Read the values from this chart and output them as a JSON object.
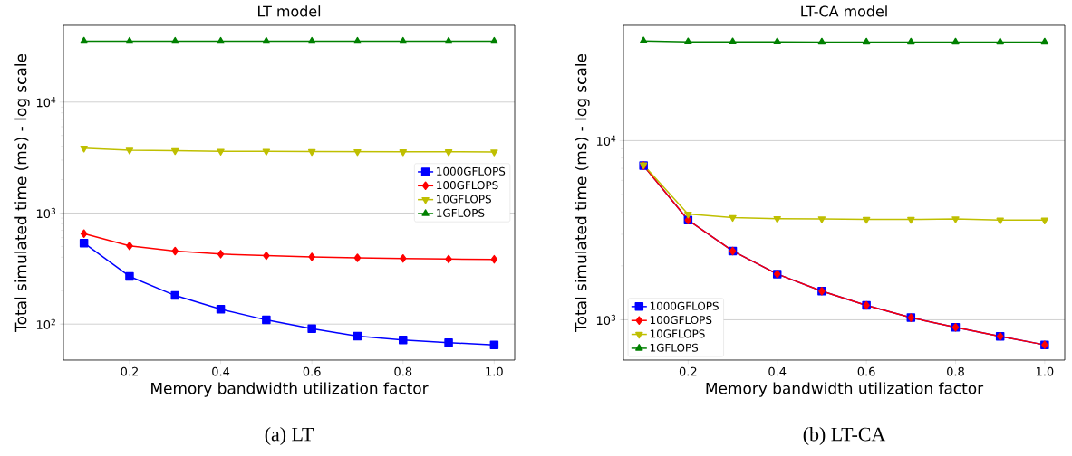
{
  "chart_data": [
    {
      "type": "line",
      "title": "LT model",
      "xlabel": "Memory bandwidth utilization factor",
      "ylabel": "Total simulated time (ms) - log scale",
      "annotations": [
        "(a) LT"
      ],
      "x": [
        0.1,
        0.2,
        0.3,
        0.4,
        0.5,
        0.6,
        0.7,
        0.8,
        0.9,
        1.0
      ],
      "series": [
        {
          "name": "1000GFLOPS",
          "color": "#0000ff",
          "marker": "square",
          "values": [
            537,
            269,
            181,
            136,
            109,
            91,
            78,
            72,
            68,
            65
          ]
        },
        {
          "name": "100GFLOPS",
          "color": "#ff0000",
          "marker": "diamond",
          "values": [
            653,
            506,
            454,
            427,
            413,
            403,
            395,
            390,
            385,
            383
          ]
        },
        {
          "name": "10GFLOPS",
          "color": "#bfbf00",
          "marker": "triangle_down",
          "values": [
            3840,
            3690,
            3650,
            3600,
            3600,
            3580,
            3570,
            3560,
            3560,
            3550
          ]
        },
        {
          "name": "1GFLOPS",
          "color": "#008000",
          "marker": "triangle",
          "values": [
            35400,
            35300,
            35300,
            35300,
            35300,
            35300,
            35300,
            35300,
            35300,
            35300
          ]
        }
      ],
      "xlim": [
        0.055,
        1.045
      ],
      "ylim": [
        47.4,
        49100
      ],
      "log": "y",
      "xticks": [
        0.2,
        0.4,
        0.6,
        0.8,
        {
          "value": 1.0,
          "label": "1.0"
        }
      ],
      "yticks": [
        {
          "value": 100,
          "label": "10$^{2}$"
        },
        {
          "value": 1000,
          "label": "10$^{3}$"
        },
        {
          "value": 10000,
          "label": "10$^{4}$"
        }
      ],
      "grid": "y",
      "legend": "right",
      "line_style": "solid"
    },
    {
      "type": "line",
      "title": "LT-CA model",
      "xlabel": "Memory bandwidth utilization factor",
      "ylabel": "Total simulated time (ms) - log scale",
      "annotations": [
        "(b) LT-CA"
      ],
      "x": [
        0.1,
        0.2,
        0.3,
        0.4,
        0.5,
        0.6,
        0.7,
        0.8,
        0.9,
        1.0
      ],
      "series": [
        {
          "name": "1000GFLOPS",
          "color": "#0000ff",
          "marker": "square",
          "values": [
            7250,
            3600,
            2420,
            1800,
            1445,
            1205,
            1028,
            908,
            808,
            725
          ]
        },
        {
          "name": "100GFLOPS",
          "color": "#ff0000",
          "marker": "diamond",
          "values": [
            7250,
            3600,
            2420,
            1800,
            1445,
            1205,
            1028,
            908,
            808,
            725
          ]
        },
        {
          "name": "10GFLOPS",
          "color": "#bfbf00",
          "marker": "triangle_down",
          "values": [
            7330,
            3890,
            3720,
            3670,
            3660,
            3630,
            3630,
            3660,
            3600,
            3600
          ]
        },
        {
          "name": "1GFLOPS",
          "color": "#008000",
          "marker": "triangle",
          "values": [
            36000,
            35600,
            35600,
            35600,
            35500,
            35500,
            35500,
            35500,
            35500,
            35500
          ]
        }
      ],
      "xlim": [
        0.055,
        1.045
      ],
      "ylim": [
        596,
        44000
      ],
      "log": "y",
      "xticks": [
        0.2,
        0.4,
        0.6,
        0.8,
        {
          "value": 1.0,
          "label": "1.0"
        }
      ],
      "yticks": [
        {
          "value": 1000,
          "label": "10$^{3}$"
        },
        {
          "value": 10000,
          "label": "10$^{4}$"
        }
      ],
      "grid": "y",
      "legend": "bottom left",
      "line_style": "solid"
    }
  ]
}
